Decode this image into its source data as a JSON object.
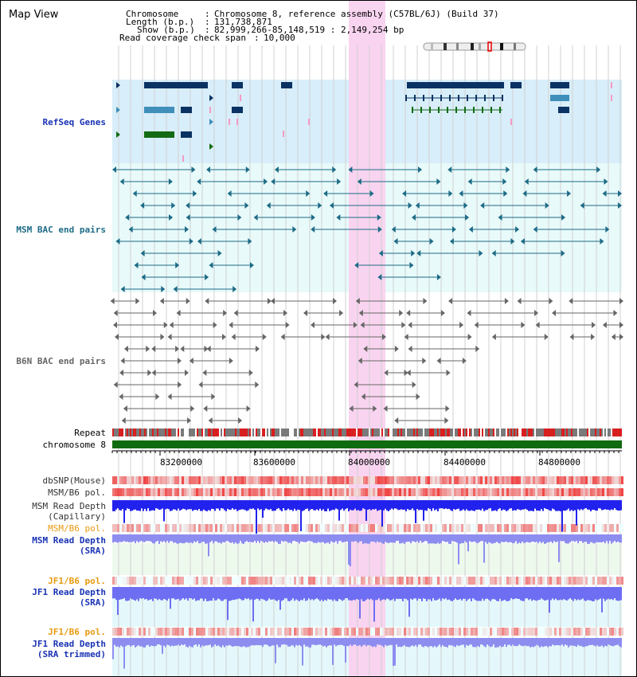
{
  "title": "Map View",
  "info": {
    "chromosome_label": "Chromosome",
    "chromosome_value": "Chromosome 8, reference assembly (C57BL/6J) (Build 37)",
    "length_label": "Length (b.p.)",
    "length_value": "131,738,871",
    "show_label": "Show (b.p.)",
    "show_value": "82,999,266-85,148,519 : 2,149,254 bp",
    "coverage_label": "Read coverage check span",
    "coverage_value": "10,000"
  },
  "tracks": {
    "refseq": "RefSeq Genes",
    "msm_bac": "MSM BAC end pairs",
    "b6n_bac": "B6N BAC end pairs",
    "repeat": "Repeat",
    "chromosome": "chromosome 8",
    "dbsnp": "dbSNP(Mouse)",
    "msm_b6_pol_1": "MSM/B6 pol.",
    "msm_read_depth_cap_1": "MSM Read Depth",
    "msm_read_depth_cap_2": "(Capillary)",
    "msm_b6_pol_2": "MSM/B6 pol.",
    "msm_read_depth_sra_1": "MSM Read Depth",
    "msm_read_depth_sra_2": "(SRA)",
    "jf1_b6_pol_1": "JF1/B6 pol.",
    "jf1_read_depth_sra_1": "JF1 Read Depth",
    "jf1_read_depth_sra_2": "(SRA)",
    "jf1_b6_pol_2": "JF1/B6 pol.",
    "jf1_read_depth_trim_1": "JF1 Read Depth",
    "jf1_read_depth_trim_2": "(SRA trimmed)"
  },
  "axis": {
    "ticks": [
      "83200000",
      "83600000",
      "84000000",
      "84400000",
      "84800000"
    ]
  },
  "colors": {
    "refseq_bg": "#d8eefa",
    "bac_bg": "#e8fafa",
    "highlight": "#f9d4f0",
    "refseq_navy": "#0a3263",
    "refseq_blue": "#3f8fba",
    "refseq_green": "#126b12",
    "msm_teal": "#1d6b86",
    "b6n_gray": "#666666",
    "chromosome_green": "#0f6b0f",
    "depth_blue": "#3333ee",
    "label_blue": "#1a33b5",
    "label_teal": "#1d6b86",
    "label_orange": "#e89a10"
  }
}
